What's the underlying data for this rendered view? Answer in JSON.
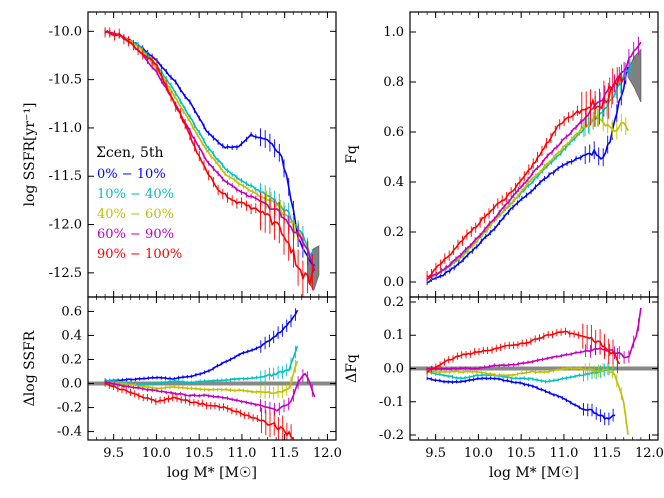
{
  "chart_data": [
    {
      "id": "ssfr",
      "type": "line",
      "ylabel": "log SSFR[yr⁻¹]",
      "xlim": [
        9.2,
        12.1
      ],
      "ylim": [
        -12.75,
        -9.8
      ],
      "xticks": [
        9.5,
        10.0,
        10.5,
        11.0,
        11.5,
        12.0
      ],
      "xtick_labels": [
        "9.5",
        "10.0",
        "10.5",
        "11.0",
        "11.5",
        "12.0"
      ],
      "yticks": [
        -10.0,
        -10.5,
        -11.0,
        -11.5,
        -12.0,
        -12.5
      ],
      "ytick_labels": [
        "-10.0",
        "-10.5",
        "-11.0",
        "-11.5",
        "-12.0",
        "-12.5"
      ],
      "legend_title": "Σcen, 5th",
      "legend": [
        {
          "label": "0% − 10%",
          "color": "#0000ff"
        },
        {
          "label": "10% − 40%",
          "color": "#00c0c0"
        },
        {
          "label": "40% − 60%",
          "color": "#c0c000"
        },
        {
          "label": "60% − 90%",
          "color": "#c000c0"
        },
        {
          "label": "90% − 100%",
          "color": "#ff0000"
        }
      ],
      "band": {
        "x": [
          11.78,
          11.84,
          11.9
        ],
        "lo": [
          -12.6,
          -12.68,
          -12.52
        ],
        "hi": [
          -12.35,
          -12.25,
          -12.22
        ]
      },
      "series": [
        {
          "name": "0% − 10%",
          "color": "#0000ff",
          "x": [
            9.4,
            9.6,
            9.8,
            10.0,
            10.2,
            10.4,
            10.6,
            10.8,
            10.95,
            11.1,
            11.3,
            11.45,
            11.55,
            11.65,
            11.75,
            11.85
          ],
          "y": [
            -10.0,
            -10.05,
            -10.15,
            -10.3,
            -10.5,
            -10.75,
            -11.05,
            -11.2,
            -11.2,
            -11.07,
            -11.12,
            -11.25,
            -11.6,
            -12.1,
            -12.3,
            -12.45
          ]
        },
        {
          "name": "10% − 40%",
          "color": "#00c0c0",
          "x": [
            9.4,
            9.6,
            9.8,
            10.0,
            10.2,
            10.4,
            10.6,
            10.8,
            11.0,
            11.2,
            11.4,
            11.55,
            11.7,
            11.85
          ],
          "y": [
            -10.0,
            -10.05,
            -10.15,
            -10.35,
            -10.6,
            -10.9,
            -11.2,
            -11.42,
            -11.55,
            -11.65,
            -11.75,
            -11.9,
            -12.1,
            -12.4
          ]
        },
        {
          "name": "40% − 60%",
          "color": "#c0c000",
          "x": [
            9.4,
            9.6,
            9.8,
            10.0,
            10.2,
            10.4,
            10.6,
            10.8,
            11.0,
            11.2,
            11.4,
            11.55,
            11.7,
            11.8
          ],
          "y": [
            -10.0,
            -10.05,
            -10.17,
            -10.38,
            -10.65,
            -10.95,
            -11.25,
            -11.47,
            -11.6,
            -11.7,
            -11.8,
            -11.95,
            -12.15,
            -12.35
          ]
        },
        {
          "name": "60% − 90%",
          "color": "#c000c0",
          "x": [
            9.4,
            9.6,
            9.8,
            10.0,
            10.2,
            10.4,
            10.6,
            10.8,
            11.0,
            11.2,
            11.4,
            11.55,
            11.7,
            11.85
          ],
          "y": [
            -10.0,
            -10.05,
            -10.2,
            -10.42,
            -10.72,
            -11.05,
            -11.35,
            -11.55,
            -11.67,
            -11.75,
            -11.85,
            -12.0,
            -12.15,
            -12.45
          ]
        },
        {
          "name": "90% − 100%",
          "color": "#ff0000",
          "x": [
            9.4,
            9.6,
            9.8,
            10.0,
            10.1,
            10.3,
            10.5,
            10.7,
            10.9,
            11.1,
            11.3,
            11.5,
            11.6,
            11.7,
            11.8,
            11.85
          ],
          "y": [
            -10.0,
            -10.05,
            -10.2,
            -10.35,
            -10.55,
            -10.9,
            -11.3,
            -11.62,
            -11.75,
            -11.82,
            -11.9,
            -12.1,
            -12.3,
            -12.5,
            -12.6,
            -12.45
          ]
        }
      ]
    },
    {
      "id": "fq",
      "type": "line",
      "ylabel": "Fq",
      "xlim": [
        9.2,
        12.1
      ],
      "ylim": [
        -0.06,
        1.08
      ],
      "xticks": [
        9.5,
        10.0,
        10.5,
        11.0,
        11.5,
        12.0
      ],
      "xtick_labels": [
        "9.5",
        "10.0",
        "10.5",
        "11.0",
        "11.5",
        "12.0"
      ],
      "yticks": [
        0.0,
        0.2,
        0.4,
        0.6,
        0.8,
        1.0
      ],
      "ytick_labels": [
        "0.0",
        "0.2",
        "0.4",
        "0.6",
        "0.8",
        "1.0"
      ],
      "band": {
        "x": [
          11.75,
          11.82,
          11.9
        ],
        "lo": [
          0.82,
          0.78,
          0.72
        ],
        "hi": [
          0.85,
          0.9,
          0.93
        ]
      },
      "series": [
        {
          "name": "0% − 10%",
          "color": "#0000ff",
          "x": [
            9.4,
            9.6,
            9.8,
            10.0,
            10.2,
            10.4,
            10.6,
            10.8,
            11.0,
            11.2,
            11.35,
            11.45,
            11.55,
            11.65,
            11.75
          ],
          "y": [
            0.0,
            0.03,
            0.08,
            0.15,
            0.22,
            0.3,
            0.36,
            0.42,
            0.47,
            0.5,
            0.52,
            0.5,
            0.58,
            0.72,
            0.85
          ]
        },
        {
          "name": "10% − 40%",
          "color": "#00c0c0",
          "x": [
            9.4,
            9.6,
            9.8,
            10.0,
            10.2,
            10.4,
            10.6,
            10.8,
            11.0,
            11.2,
            11.4,
            11.55,
            11.7,
            11.8
          ],
          "y": [
            0.01,
            0.05,
            0.1,
            0.17,
            0.25,
            0.32,
            0.39,
            0.46,
            0.53,
            0.6,
            0.67,
            0.73,
            0.82,
            0.88
          ]
        },
        {
          "name": "40% − 60%",
          "color": "#c0c000",
          "x": [
            9.4,
            9.6,
            9.8,
            10.0,
            10.2,
            10.4,
            10.6,
            10.8,
            11.0,
            11.2,
            11.4,
            11.5,
            11.6,
            11.7,
            11.75
          ],
          "y": [
            0.01,
            0.05,
            0.1,
            0.17,
            0.25,
            0.32,
            0.4,
            0.47,
            0.54,
            0.61,
            0.66,
            0.63,
            0.6,
            0.64,
            0.6
          ]
        },
        {
          "name": "60% − 90%",
          "color": "#c000c0",
          "x": [
            9.4,
            9.6,
            9.8,
            10.0,
            10.2,
            10.4,
            10.6,
            10.8,
            11.0,
            11.2,
            11.4,
            11.6,
            11.75,
            11.9
          ],
          "y": [
            0.01,
            0.05,
            0.11,
            0.18,
            0.26,
            0.34,
            0.42,
            0.5,
            0.57,
            0.64,
            0.71,
            0.8,
            0.88,
            0.96
          ]
        },
        {
          "name": "90% − 100%",
          "color": "#ff0000",
          "x": [
            9.4,
            9.5,
            9.7,
            9.9,
            10.1,
            10.3,
            10.5,
            10.7,
            10.9,
            11.1,
            11.3,
            11.5,
            11.6,
            11.7
          ],
          "y": [
            0.02,
            0.05,
            0.12,
            0.2,
            0.27,
            0.33,
            0.4,
            0.5,
            0.61,
            0.67,
            0.7,
            0.72,
            0.78,
            0.83
          ]
        }
      ]
    },
    {
      "id": "dssfr",
      "type": "line",
      "xlabel": "log M* [M☉]",
      "ylabel": "Δlog SSFR",
      "xlim": [
        9.2,
        12.1
      ],
      "ylim": [
        -0.47,
        0.72
      ],
      "xticks": [
        9.5,
        10.0,
        10.5,
        11.0,
        11.5,
        12.0
      ],
      "xtick_labels": [
        "9.5",
        "10.0",
        "10.5",
        "11.0",
        "11.5",
        "12.0"
      ],
      "yticks": [
        -0.4,
        -0.2,
        0.0,
        0.2,
        0.4,
        0.6
      ],
      "ytick_labels": [
        "-0.4",
        "-0.2",
        "0.0",
        "0.2",
        "0.4",
        "0.6"
      ],
      "series": [
        {
          "name": "0% − 10%",
          "color": "#0000ff",
          "x": [
            9.4,
            9.6,
            9.8,
            10.0,
            10.2,
            10.4,
            10.6,
            10.8,
            11.0,
            11.2,
            11.4,
            11.55,
            11.65
          ],
          "y": [
            0.02,
            0.03,
            0.04,
            0.05,
            0.04,
            0.06,
            0.1,
            0.18,
            0.25,
            0.3,
            0.4,
            0.5,
            0.6
          ]
        },
        {
          "name": "10% − 40%",
          "color": "#00c0c0",
          "x": [
            9.4,
            9.6,
            9.8,
            10.0,
            10.2,
            10.4,
            10.6,
            10.8,
            11.0,
            11.2,
            11.4,
            11.55,
            11.65
          ],
          "y": [
            0.03,
            0.01,
            -0.01,
            0.0,
            0.02,
            0.01,
            0.02,
            0.03,
            0.04,
            0.05,
            0.08,
            0.12,
            0.3
          ]
        },
        {
          "name": "40% − 60%",
          "color": "#c0c000",
          "x": [
            9.4,
            9.6,
            9.8,
            10.0,
            10.2,
            10.4,
            10.6,
            10.8,
            11.0,
            11.2,
            11.4,
            11.55,
            11.65
          ],
          "y": [
            0.01,
            0.0,
            -0.02,
            -0.04,
            -0.03,
            -0.04,
            -0.05,
            -0.05,
            -0.06,
            -0.07,
            -0.08,
            -0.05,
            0.2
          ]
        },
        {
          "name": "60% − 90%",
          "color": "#c000c0",
          "x": [
            9.4,
            9.6,
            9.8,
            10.0,
            10.2,
            10.4,
            10.6,
            10.8,
            11.0,
            11.2,
            11.4,
            11.55,
            11.65,
            11.75,
            11.85
          ],
          "y": [
            0.01,
            -0.02,
            -0.04,
            -0.06,
            -0.08,
            -0.1,
            -0.1,
            -0.12,
            -0.15,
            -0.18,
            -0.22,
            -0.18,
            0.0,
            0.1,
            -0.12
          ]
        },
        {
          "name": "90% − 100%",
          "color": "#ff0000",
          "x": [
            9.4,
            9.6,
            9.8,
            10.0,
            10.2,
            10.4,
            10.6,
            10.8,
            11.0,
            11.2,
            11.4,
            11.5,
            11.6
          ],
          "y": [
            0.0,
            -0.05,
            -0.1,
            -0.15,
            -0.12,
            -0.15,
            -0.18,
            -0.2,
            -0.25,
            -0.3,
            -0.35,
            -0.4,
            -0.45
          ]
        }
      ]
    },
    {
      "id": "dfq",
      "type": "line",
      "xlabel": "log M* [M☉]",
      "ylabel": "ΔFq",
      "xlim": [
        9.2,
        12.1
      ],
      "ylim": [
        -0.215,
        0.215
      ],
      "xticks": [
        9.5,
        10.0,
        10.5,
        11.0,
        11.5,
        12.0
      ],
      "xtick_labels": [
        "9.5",
        "10.0",
        "10.5",
        "11.0",
        "11.5",
        "12.0"
      ],
      "yticks": [
        -0.2,
        -0.1,
        0.0,
        0.1,
        0.2
      ],
      "ytick_labels": [
        "-0.2",
        "-0.1",
        "0.0",
        "0.1",
        "0.2"
      ],
      "series": [
        {
          "name": "0% − 10%",
          "color": "#0000ff",
          "x": [
            9.4,
            9.6,
            9.8,
            10.0,
            10.2,
            10.4,
            10.6,
            10.8,
            11.0,
            11.2,
            11.35,
            11.5,
            11.6
          ],
          "y": [
            -0.03,
            -0.04,
            -0.04,
            -0.03,
            -0.03,
            -0.04,
            -0.05,
            -0.07,
            -0.09,
            -0.12,
            -0.13,
            -0.15,
            -0.14
          ]
        },
        {
          "name": "10% − 40%",
          "color": "#00c0c0",
          "x": [
            9.4,
            9.6,
            9.8,
            10.0,
            10.2,
            10.4,
            10.6,
            10.8,
            11.0,
            11.2,
            11.4,
            11.6
          ],
          "y": [
            -0.01,
            -0.02,
            -0.03,
            -0.02,
            -0.02,
            -0.03,
            -0.03,
            -0.04,
            -0.03,
            -0.02,
            -0.01,
            0.0
          ]
        },
        {
          "name": "40% − 60%",
          "color": "#c0c000",
          "x": [
            9.4,
            9.6,
            9.8,
            10.0,
            10.2,
            10.4,
            10.6,
            10.8,
            11.0,
            11.2,
            11.4,
            11.5,
            11.6,
            11.7,
            11.75
          ],
          "y": [
            -0.01,
            -0.01,
            -0.01,
            -0.01,
            -0.02,
            -0.02,
            -0.01,
            -0.01,
            0.0,
            0.0,
            -0.01,
            0.0,
            -0.02,
            -0.1,
            -0.2
          ]
        },
        {
          "name": "60% − 90%",
          "color": "#c000c0",
          "x": [
            9.4,
            9.6,
            9.8,
            10.0,
            10.2,
            10.4,
            10.6,
            10.8,
            11.0,
            11.2,
            11.4,
            11.6,
            11.75,
            11.85,
            11.9
          ],
          "y": [
            0.0,
            0.0,
            0.0,
            0.0,
            0.01,
            0.01,
            0.02,
            0.03,
            0.04,
            0.05,
            0.06,
            0.05,
            0.03,
            0.1,
            0.18
          ]
        },
        {
          "name": "90% − 100%",
          "color": "#ff0000",
          "x": [
            9.4,
            9.6,
            9.8,
            10.0,
            10.2,
            10.4,
            10.6,
            10.8,
            11.0,
            11.2,
            11.4,
            11.55,
            11.65
          ],
          "y": [
            -0.01,
            0.02,
            0.04,
            0.05,
            0.06,
            0.07,
            0.08,
            0.1,
            0.11,
            0.1,
            0.08,
            0.05,
            0.02
          ]
        }
      ]
    }
  ]
}
